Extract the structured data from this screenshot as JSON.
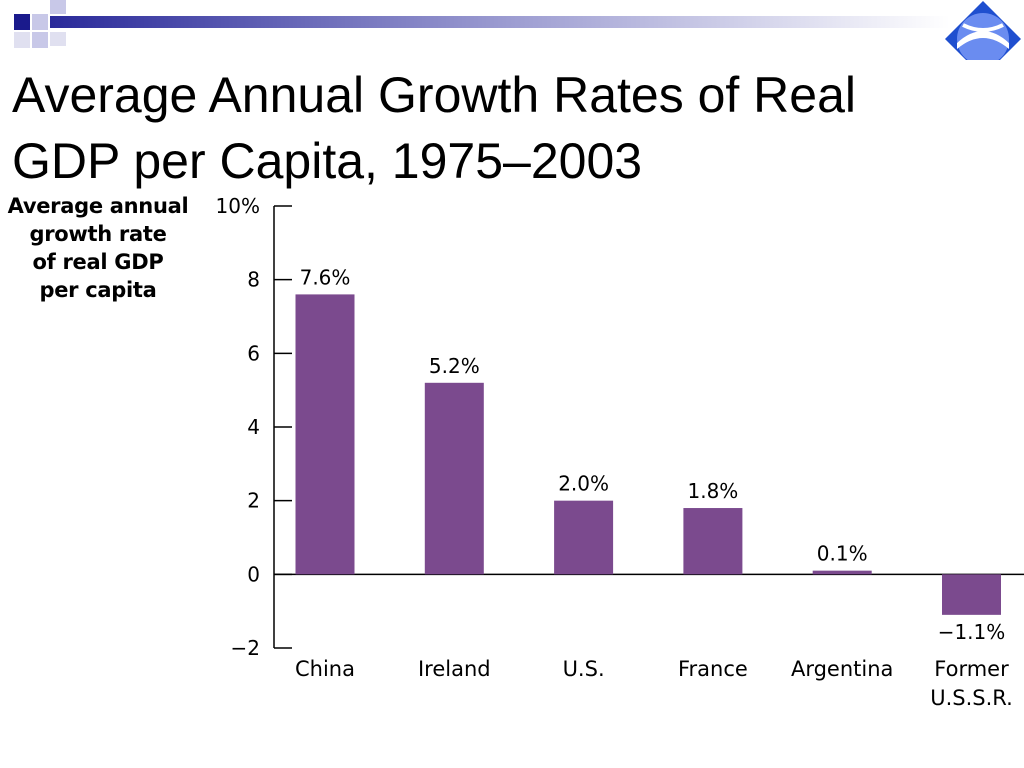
{
  "slide": {
    "title_line1": "Average Annual Growth Rates of Real",
    "title_line2": "GDP per Capita, 1975–2003",
    "logo_icon": "globe-logo-icon",
    "accent_color": "#1a1a8c",
    "light_accent": "#c8c8e8"
  },
  "chart_data": {
    "type": "bar",
    "title": "",
    "ylabel_lines": [
      "Average annual",
      "growth rate",
      "of real GDP",
      "per capita"
    ],
    "xlabel": "",
    "ylim": [
      -2,
      10
    ],
    "yticks": [
      {
        "value": 10,
        "label": "10%"
      },
      {
        "value": 8,
        "label": "8"
      },
      {
        "value": 6,
        "label": "6"
      },
      {
        "value": 4,
        "label": "4"
      },
      {
        "value": 2,
        "label": "2"
      },
      {
        "value": 0,
        "label": "0"
      },
      {
        "value": -2,
        "label": "−2"
      }
    ],
    "categories": [
      {
        "label_lines": [
          "China"
        ]
      },
      {
        "label_lines": [
          "Ireland"
        ]
      },
      {
        "label_lines": [
          "U.S."
        ]
      },
      {
        "label_lines": [
          "France"
        ]
      },
      {
        "label_lines": [
          "Argentina"
        ]
      },
      {
        "label_lines": [
          "Former",
          "U.S.S.R."
        ]
      }
    ],
    "values": [
      7.6,
      5.2,
      2.0,
      1.8,
      0.1,
      -1.1
    ],
    "data_labels": [
      "7.6%",
      "5.2%",
      "2.0%",
      "1.8%",
      "0.1%",
      "−1.1%"
    ],
    "bar_color": "#7b4a8e",
    "grid": false,
    "legend": "none"
  }
}
